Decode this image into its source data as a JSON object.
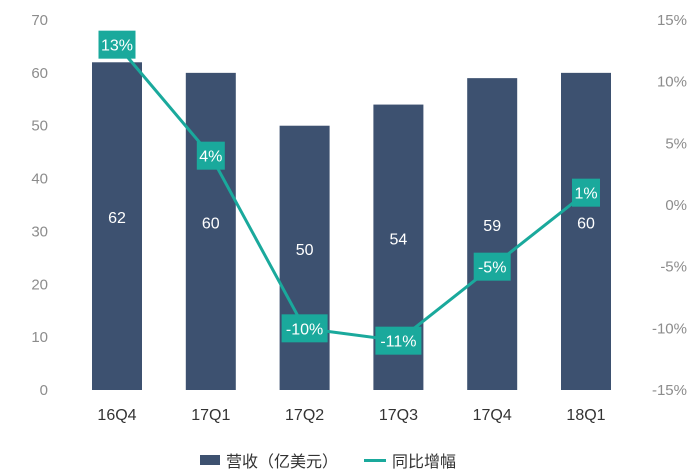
{
  "colors": {
    "bar": "#3d5170",
    "line": "#1aa99c",
    "axis_text": "#8c8c8c"
  },
  "legend": {
    "bar_label": "营收（亿美元）",
    "line_label": "同比增幅"
  },
  "chart_data": {
    "type": "bar",
    "categories": [
      "16Q4",
      "17Q1",
      "17Q2",
      "17Q3",
      "17Q4",
      "18Q1"
    ],
    "series": [
      {
        "name": "营收（亿美元）",
        "type": "bar",
        "axis": "left",
        "values": [
          62,
          60,
          50,
          54,
          59,
          60
        ],
        "labels": [
          "62",
          "60",
          "50",
          "54",
          "59",
          "60"
        ]
      },
      {
        "name": "同比增幅",
        "type": "line",
        "axis": "right",
        "values": [
          13,
          4,
          -10,
          -11,
          -5,
          1
        ],
        "labels": [
          "13%",
          "4%",
          "-10%",
          "-11%",
          "-5%",
          "1%"
        ]
      }
    ],
    "ylim_left": [
      0,
      70
    ],
    "ylim_right": [
      -15,
      15
    ],
    "left_ticks": [
      "0",
      "10",
      "20",
      "30",
      "40",
      "50",
      "60",
      "70"
    ],
    "right_ticks": [
      "-15%",
      "-10%",
      "-5%",
      "0%",
      "5%",
      "10%",
      "15%"
    ],
    "legend_position": "bottom",
    "grid": false
  }
}
